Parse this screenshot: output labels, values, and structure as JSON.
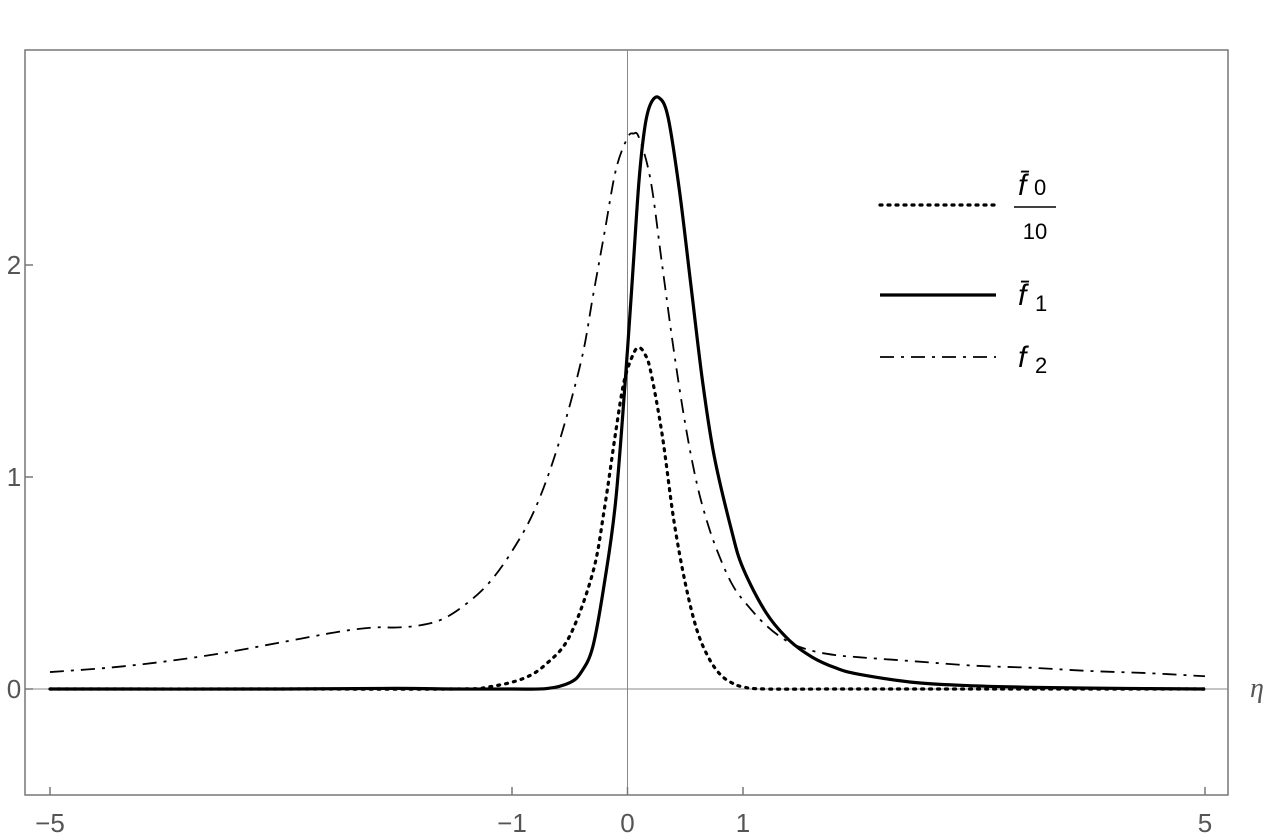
{
  "chart_data": {
    "type": "line",
    "title": "",
    "xlabel": "η",
    "ylabel": "",
    "xlim": [
      -5.2,
      5.2
    ],
    "ylim": [
      -0.5,
      3.0
    ],
    "x_ticks": [
      -5,
      -1,
      0,
      1,
      5
    ],
    "y_ticks": [
      0,
      1,
      2
    ],
    "grid": false,
    "legend_position": "top-right",
    "series": [
      {
        "name": "f̄0 / 10",
        "legend_numerator": "f̄",
        "legend_subscript": "0",
        "legend_denominator": "10",
        "style": "dotted",
        "color": "#000000",
        "points": [
          [
            -5,
            0
          ],
          [
            -3,
            0
          ],
          [
            -1.5,
            0
          ],
          [
            -1.2,
            0.01
          ],
          [
            -0.9,
            0.05
          ],
          [
            -0.7,
            0.12
          ],
          [
            -0.5,
            0.25
          ],
          [
            -0.3,
            0.55
          ],
          [
            -0.2,
            0.85
          ],
          [
            -0.1,
            1.22
          ],
          [
            -0.03,
            1.45
          ],
          [
            0.05,
            1.58
          ],
          [
            0.1,
            1.61
          ],
          [
            0.15,
            1.58
          ],
          [
            0.2,
            1.5
          ],
          [
            0.3,
            1.2
          ],
          [
            0.4,
            0.8
          ],
          [
            0.5,
            0.5
          ],
          [
            0.6,
            0.28
          ],
          [
            0.7,
            0.15
          ],
          [
            0.8,
            0.07
          ],
          [
            0.9,
            0.03
          ],
          [
            1.0,
            0.01
          ],
          [
            1.2,
            0
          ],
          [
            2,
            0
          ],
          [
            5,
            0
          ]
        ]
      },
      {
        "name": "f̄1",
        "legend_label": "f̄",
        "legend_subscript": "1",
        "style": "solid",
        "color": "#000000",
        "points": [
          [
            -5,
            0
          ],
          [
            -3,
            0
          ],
          [
            -2,
            0.003
          ],
          [
            -1.5,
            0
          ],
          [
            -1,
            0
          ],
          [
            -0.7,
            0.002
          ],
          [
            -0.5,
            0.03
          ],
          [
            -0.4,
            0.08
          ],
          [
            -0.3,
            0.2
          ],
          [
            -0.2,
            0.5
          ],
          [
            -0.1,
            0.9
          ],
          [
            0,
            1.6
          ],
          [
            0.05,
            2.0
          ],
          [
            0.1,
            2.4
          ],
          [
            0.15,
            2.65
          ],
          [
            0.2,
            2.76
          ],
          [
            0.27,
            2.79
          ],
          [
            0.35,
            2.7
          ],
          [
            0.45,
            2.35
          ],
          [
            0.55,
            1.9
          ],
          [
            0.65,
            1.45
          ],
          [
            0.75,
            1.1
          ],
          [
            0.9,
            0.75
          ],
          [
            1.0,
            0.57
          ],
          [
            1.2,
            0.36
          ],
          [
            1.4,
            0.23
          ],
          [
            1.6,
            0.15
          ],
          [
            1.8,
            0.1
          ],
          [
            2.0,
            0.07
          ],
          [
            2.5,
            0.03
          ],
          [
            3,
            0.015
          ],
          [
            3.5,
            0.008
          ],
          [
            4,
            0.004
          ],
          [
            4.5,
            0.002
          ],
          [
            5,
            0
          ]
        ]
      },
      {
        "name": "f2",
        "legend_label": "f",
        "legend_subscript": "2",
        "style": "dash-dot",
        "color": "#000000",
        "points": [
          [
            -5,
            0.08
          ],
          [
            -4.5,
            0.1
          ],
          [
            -4,
            0.13
          ],
          [
            -3.5,
            0.17
          ],
          [
            -3,
            0.22
          ],
          [
            -2.5,
            0.27
          ],
          [
            -2.2,
            0.29
          ],
          [
            -2,
            0.29
          ],
          [
            -1.8,
            0.3
          ],
          [
            -1.6,
            0.33
          ],
          [
            -1.4,
            0.4
          ],
          [
            -1.2,
            0.5
          ],
          [
            -1,
            0.65
          ],
          [
            -0.8,
            0.85
          ],
          [
            -0.6,
            1.15
          ],
          [
            -0.4,
            1.55
          ],
          [
            -0.3,
            1.85
          ],
          [
            -0.2,
            2.15
          ],
          [
            -0.1,
            2.45
          ],
          [
            0,
            2.6
          ],
          [
            0.05,
            2.62
          ],
          [
            0.1,
            2.6
          ],
          [
            0.2,
            2.4
          ],
          [
            0.3,
            2.0
          ],
          [
            0.4,
            1.6
          ],
          [
            0.5,
            1.25
          ],
          [
            0.6,
            0.97
          ],
          [
            0.7,
            0.77
          ],
          [
            0.8,
            0.62
          ],
          [
            0.9,
            0.5
          ],
          [
            1.0,
            0.42
          ],
          [
            1.2,
            0.3
          ],
          [
            1.4,
            0.22
          ],
          [
            1.6,
            0.18
          ],
          [
            1.8,
            0.16
          ],
          [
            2,
            0.15
          ],
          [
            2.5,
            0.13
          ],
          [
            3,
            0.11
          ],
          [
            3.5,
            0.1
          ],
          [
            4,
            0.085
          ],
          [
            4.5,
            0.075
          ],
          [
            5,
            0.06
          ]
        ]
      }
    ]
  }
}
